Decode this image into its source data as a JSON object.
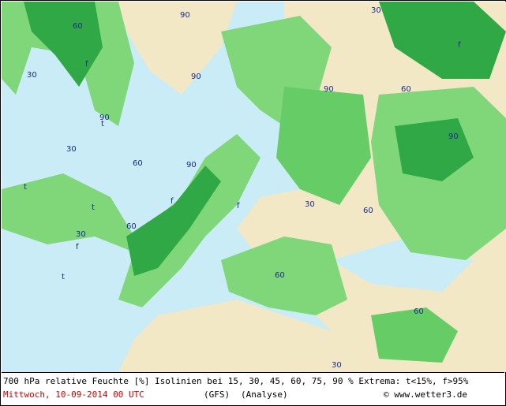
{
  "map_labels": [
    "90",
    "60",
    "30",
    "t",
    "f",
    "90",
    "60",
    "30",
    "f",
    "t",
    "90",
    "60",
    "30",
    "f",
    "90",
    "60",
    "30",
    "t",
    "f",
    "60",
    "90",
    "30",
    "f",
    "60",
    "30",
    "t",
    "60",
    "90"
  ],
  "footer": {
    "line1": "700 hPa relative Feuchte [%] Isolinien bei 15, 30, 45, 60, 75, 90 %  Extrema: t<15%, f>95%",
    "date": "Mittwoch, 10-09-2014  00 UTC",
    "model": "(GFS)",
    "analysis": "(Analyse)",
    "credit": "© www.wetter3.de"
  }
}
